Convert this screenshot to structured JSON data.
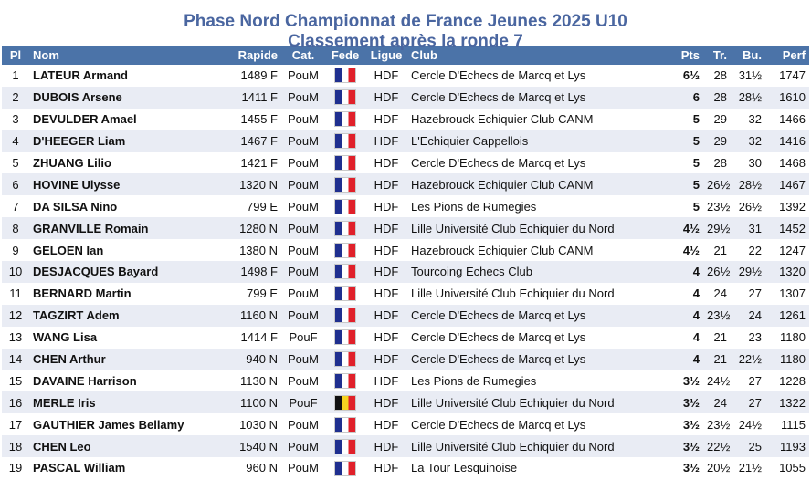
{
  "title_line1": "Phase Nord Championnat de France Jeunes 2025 U10",
  "title_line2": "Classement après la ronde 7",
  "headers": {
    "pl": "Pl",
    "nom": "Nom",
    "rapide": "Rapide",
    "cat": "Cat.",
    "fede": "Fede",
    "ligue": "Ligue",
    "club": "Club",
    "pts": "Pts",
    "tr": "Tr.",
    "bu": "Bu.",
    "perf": "Perf"
  },
  "flag_colors": {
    "fr": [
      "#1f2f8f",
      "#ffffff",
      "#e0202a"
    ],
    "be": [
      "#111111",
      "#f4d320",
      "#e0202a"
    ]
  },
  "rows": [
    {
      "pl": "1",
      "nom": "LATEUR Armand",
      "rapide": "1489 F",
      "cat": "PouM",
      "fede": "flag-fr",
      "ligue": "HDF",
      "club": "Cercle D'Echecs de Marcq et Lys",
      "pts": "6½",
      "tr": "28",
      "bu": "31½",
      "perf": "1747"
    },
    {
      "pl": "2",
      "nom": "DUBOIS Arsene",
      "rapide": "1411 F",
      "cat": "PouM",
      "fede": "flag-fr",
      "ligue": "HDF",
      "club": "Cercle D'Echecs de Marcq et Lys",
      "pts": "6",
      "tr": "28",
      "bu": "28½",
      "perf": "1610"
    },
    {
      "pl": "3",
      "nom": "DEVULDER Amael",
      "rapide": "1455 F",
      "cat": "PouM",
      "fede": "flag-fr",
      "ligue": "HDF",
      "club": "Hazebrouck Echiquier Club CANM",
      "pts": "5",
      "tr": "29",
      "bu": "32",
      "perf": "1466"
    },
    {
      "pl": "4",
      "nom": "D'HEEGER Liam",
      "rapide": "1467 F",
      "cat": "PouM",
      "fede": "flag-fr",
      "ligue": "HDF",
      "club": "L'Echiquier Cappellois",
      "pts": "5",
      "tr": "29",
      "bu": "32",
      "perf": "1416"
    },
    {
      "pl": "5",
      "nom": "ZHUANG Lilio",
      "rapide": "1421 F",
      "cat": "PouM",
      "fede": "flag-fr",
      "ligue": "HDF",
      "club": "Cercle D'Echecs de Marcq et Lys",
      "pts": "5",
      "tr": "28",
      "bu": "30",
      "perf": "1468"
    },
    {
      "pl": "6",
      "nom": "HOVINE Ulysse",
      "rapide": "1320 N",
      "cat": "PouM",
      "fede": "flag-fr",
      "ligue": "HDF",
      "club": "Hazebrouck Echiquier Club CANM",
      "pts": "5",
      "tr": "26½",
      "bu": "28½",
      "perf": "1467"
    },
    {
      "pl": "7",
      "nom": "DA SILSA Nino",
      "rapide": "799 E",
      "cat": "PouM",
      "fede": "flag-fr",
      "ligue": "HDF",
      "club": "Les Pions de Rumegies",
      "pts": "5",
      "tr": "23½",
      "bu": "26½",
      "perf": "1392"
    },
    {
      "pl": "8",
      "nom": "GRANVILLE Romain",
      "rapide": "1280 N",
      "cat": "PouM",
      "fede": "flag-fr",
      "ligue": "HDF",
      "club": "Lille Université Club Echiquier du Nord",
      "pts": "4½",
      "tr": "29½",
      "bu": "31",
      "perf": "1452"
    },
    {
      "pl": "9",
      "nom": "GELOEN Ian",
      "rapide": "1380 N",
      "cat": "PouM",
      "fede": "flag-fr",
      "ligue": "HDF",
      "club": "Hazebrouck Echiquier Club CANM",
      "pts": "4½",
      "tr": "21",
      "bu": "22",
      "perf": "1247"
    },
    {
      "pl": "10",
      "nom": "DESJACQUES Bayard",
      "rapide": "1498 F",
      "cat": "PouM",
      "fede": "flag-fr",
      "ligue": "HDF",
      "club": "Tourcoing Echecs Club",
      "pts": "4",
      "tr": "26½",
      "bu": "29½",
      "perf": "1320"
    },
    {
      "pl": "11",
      "nom": "BERNARD Martin",
      "rapide": "799 E",
      "cat": "PouM",
      "fede": "flag-fr",
      "ligue": "HDF",
      "club": "Lille Université Club Echiquier du Nord",
      "pts": "4",
      "tr": "24",
      "bu": "27",
      "perf": "1307"
    },
    {
      "pl": "12",
      "nom": "TAGZIRT Adem",
      "rapide": "1160 N",
      "cat": "PouM",
      "fede": "flag-fr",
      "ligue": "HDF",
      "club": "Cercle D'Echecs de Marcq et Lys",
      "pts": "4",
      "tr": "23½",
      "bu": "24",
      "perf": "1261"
    },
    {
      "pl": "13",
      "nom": "WANG Lisa",
      "rapide": "1414 F",
      "cat": "PouF",
      "fede": "flag-fr",
      "ligue": "HDF",
      "club": "Cercle D'Echecs de Marcq et Lys",
      "pts": "4",
      "tr": "21",
      "bu": "23",
      "perf": "1180"
    },
    {
      "pl": "14",
      "nom": "CHEN Arthur",
      "rapide": "940 N",
      "cat": "PouM",
      "fede": "flag-fr",
      "ligue": "HDF",
      "club": "Cercle D'Echecs de Marcq et Lys",
      "pts": "4",
      "tr": "21",
      "bu": "22½",
      "perf": "1180"
    },
    {
      "pl": "15",
      "nom": "DAVAINE Harrison",
      "rapide": "1130 N",
      "cat": "PouM",
      "fede": "flag-fr",
      "ligue": "HDF",
      "club": "Les Pions de Rumegies",
      "pts": "3½",
      "tr": "24½",
      "bu": "27",
      "perf": "1228"
    },
    {
      "pl": "16",
      "nom": "MERLE Iris",
      "rapide": "1100 N",
      "cat": "PouF",
      "fede": "flag-be",
      "ligue": "HDF",
      "club": "Lille Université Club Echiquier du Nord",
      "pts": "3½",
      "tr": "24",
      "bu": "27",
      "perf": "1322"
    },
    {
      "pl": "17",
      "nom": "GAUTHIER James Bellamy",
      "rapide": "1030 N",
      "cat": "PouM",
      "fede": "flag-fr",
      "ligue": "HDF",
      "club": "Cercle D'Echecs de Marcq et Lys",
      "pts": "3½",
      "tr": "23½",
      "bu": "24½",
      "perf": "1115"
    },
    {
      "pl": "18",
      "nom": "CHEN Leo",
      "rapide": "1540 N",
      "cat": "PouM",
      "fede": "flag-fr",
      "ligue": "HDF",
      "club": "Lille Université Club Echiquier du Nord",
      "pts": "3½",
      "tr": "22½",
      "bu": "25",
      "perf": "1193"
    },
    {
      "pl": "19",
      "nom": "PASCAL William",
      "rapide": "960 N",
      "cat": "PouM",
      "fede": "flag-fr",
      "ligue": "HDF",
      "club": "La Tour Lesquinoise",
      "pts": "3½",
      "tr": "20½",
      "bu": "21½",
      "perf": "1055"
    }
  ]
}
